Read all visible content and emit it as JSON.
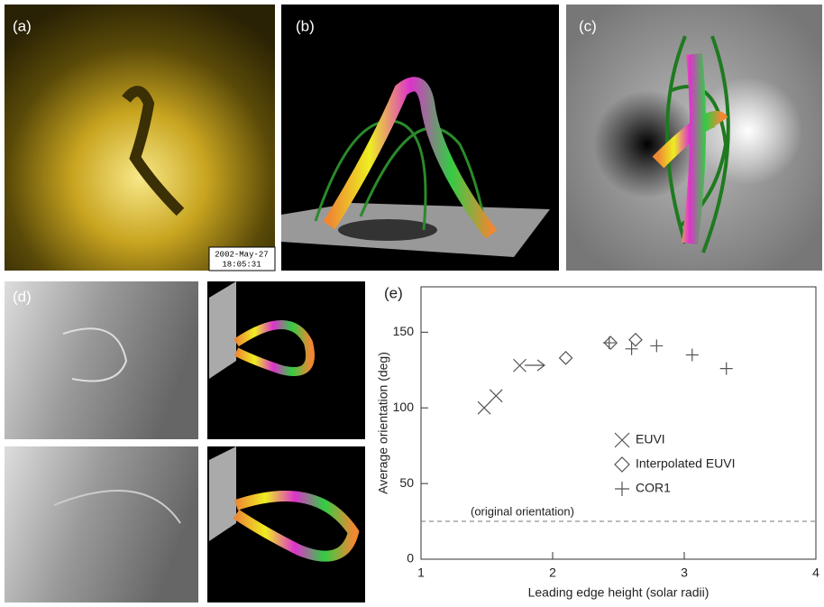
{
  "panels": [
    {
      "label": "(a)",
      "timestamp": [
        "2002-May-27",
        "18:05:31"
      ]
    },
    {
      "label": "(b)"
    },
    {
      "label": "(c)"
    },
    {
      "label": "(d)"
    }
  ],
  "chart_data": {
    "type": "scatter",
    "label": "(e)",
    "xlabel": "Leading edge height (solar radii)",
    "ylabel": "Average orientation (deg)",
    "xlim": [
      1,
      4
    ],
    "xticks": [
      1,
      2,
      3,
      4
    ],
    "ylim": [
      0,
      180
    ],
    "yticks": [
      0,
      50,
      100,
      150
    ],
    "reference_line": 25,
    "reference_label": "(original orientation)",
    "series": [
      {
        "name": "EUVI",
        "marker": "x",
        "color": "#555555",
        "x": [
          1.48,
          1.57,
          1.75
        ],
        "values": [
          100,
          108,
          128
        ]
      },
      {
        "name": "Interpolated EUVI",
        "marker": "diamond",
        "color": "#555555",
        "x": [
          2.1,
          2.44,
          2.63
        ],
        "values": [
          133,
          143,
          145
        ]
      },
      {
        "name": "COR1",
        "marker": "plus",
        "color": "#555555",
        "x": [
          2.43,
          2.6,
          2.79,
          3.06,
          3.32
        ],
        "values": [
          143,
          139,
          141,
          135,
          126
        ]
      }
    ]
  }
}
